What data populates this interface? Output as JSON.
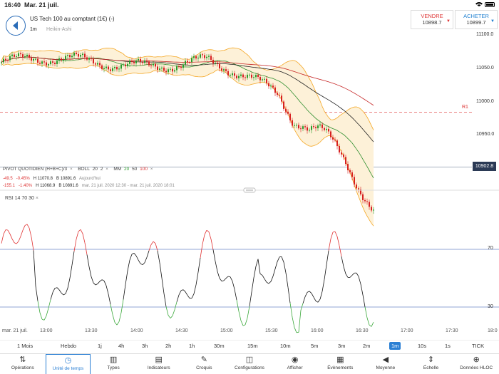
{
  "status": {
    "time": "16:40",
    "date": "Mar. 21 juil."
  },
  "header": {
    "title": "US Tech 100 au comptant (1€) (-)",
    "timeframe": "1m",
    "chart_style": "Heikin-Ashi",
    "sell": {
      "label": "VENDRE",
      "value": "10898.7"
    },
    "buy": {
      "label": "ACHETER",
      "value": "10899.7"
    }
  },
  "price_axis": [
    "11100.0",
    "11050.0",
    "11000.0",
    "10950.0"
  ],
  "current_price": "10902.8",
  "r1_label": "R1",
  "indicators": {
    "pivot": "PIVOT QUOTIDIEN (H+B+C)/3",
    "boll": "BOLL",
    "boll_p1": "20",
    "boll_p2": "2",
    "mm": "MM",
    "mm1": "20",
    "mm2": "50",
    "mm3": "100",
    "close_icon": "×",
    "row2": {
      "chg": "-49.5",
      "pct": "-0.45%",
      "h": "H 11070.8",
      "b": "B 10891.6",
      "period": "Aujourd'hui"
    },
    "row3": {
      "chg": "-155.1",
      "pct": "-1.40%",
      "h": "H 11068.9",
      "b": "B 10891.6",
      "period": "mar. 21 juil. 2020 12:30 - mar. 21 juil. 2020 18:01"
    }
  },
  "rsi": {
    "label": "RSI  14  70  30",
    "upper": "70",
    "lower": "30"
  },
  "time_axis": [
    "mar. 21 juil.",
    "13:00",
    "13:30",
    "14:00",
    "14:30",
    "15:00",
    "15:30",
    "16:00",
    "16:30",
    "17:00",
    "17:30",
    "18:0"
  ],
  "timeframes": [
    "1 Mois",
    "Hebdo",
    "1j",
    "4h",
    "3h",
    "2h",
    "1h",
    "30m",
    "15m",
    "10m",
    "5m",
    "3m",
    "2m",
    "1m",
    "10s",
    "1s",
    "TICK"
  ],
  "active_timeframe": "1m",
  "toolbar": [
    {
      "label": "Opérations",
      "icon": "arrows-icon"
    },
    {
      "label": "Unité de temps",
      "icon": "clock-icon"
    },
    {
      "label": "Types",
      "icon": "candles-icon"
    },
    {
      "label": "Indicateurs",
      "icon": "chart-icon"
    },
    {
      "label": "Croquis",
      "icon": "pencil-icon"
    },
    {
      "label": "Configurations",
      "icon": "layout-icon"
    },
    {
      "label": "Afficher",
      "icon": "eye-icon"
    },
    {
      "label": "Évènements",
      "icon": "calendar-icon"
    },
    {
      "label": "Moyenne",
      "icon": "volume-icon"
    },
    {
      "label": "Échelle",
      "icon": "scale-icon"
    },
    {
      "label": "Données HLOC",
      "icon": "target-icon"
    }
  ],
  "colors": {
    "candle_up": "#2a9a2a",
    "candle_down": "#d62020",
    "bollinger": "#f4a623",
    "ma20": "#2f8f2f",
    "ma50": "#222222",
    "ma100": "#c62828",
    "pivot_line": "#e05050",
    "rsi_line": "#111111",
    "rsi_oversold": "#3aa83a",
    "rsi_overbought": "#e03030",
    "rsi_level": "#6b86c8",
    "accent": "#2a7fd4"
  }
}
